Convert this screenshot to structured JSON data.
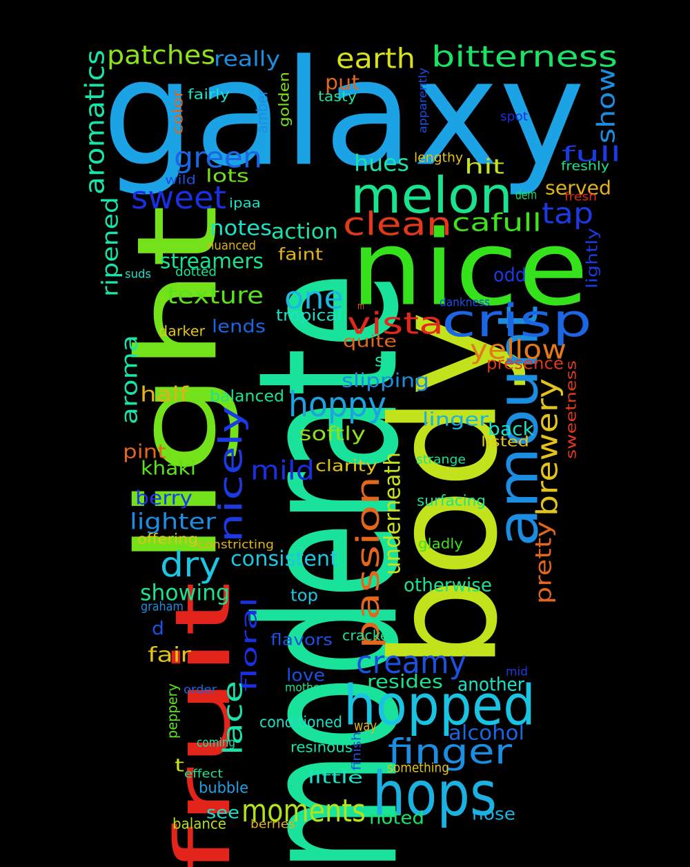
{
  "words": [
    {
      "text": "galaxy",
      "color": "#1ba3e5"
    },
    {
      "text": "moderate",
      "color": "#19e39a"
    },
    {
      "text": "body",
      "color": "#c2e21b"
    },
    {
      "text": "nice",
      "color": "#36e21b"
    },
    {
      "text": "light",
      "color": "#73e21b"
    },
    {
      "text": "fruit",
      "color": "#e2241b"
    },
    {
      "text": "amount",
      "color": "#1b8ee2"
    },
    {
      "text": "hops",
      "color": "#1bb2e2"
    },
    {
      "text": "hopped",
      "color": "#1bc3e2"
    },
    {
      "text": "melon",
      "color": "#19e38e"
    },
    {
      "text": "crisp",
      "color": "#1b66e2"
    },
    {
      "text": "bitterness",
      "color": "#1be264"
    },
    {
      "text": "earth",
      "color": "#d6e21b"
    },
    {
      "text": "patches",
      "color": "#8ee21b"
    },
    {
      "text": "aromatics",
      "color": "#19e3a8"
    },
    {
      "text": "really",
      "color": "#1b8ee2"
    },
    {
      "text": "green",
      "color": "#1b66e2"
    },
    {
      "text": "sweet",
      "color": "#1b2fe2"
    },
    {
      "text": "clean",
      "color": "#e2391b"
    },
    {
      "text": "cafull",
      "color": "#3fe21b"
    },
    {
      "text": "tap",
      "color": "#1b3ae2"
    },
    {
      "text": "hues",
      "color": "#1be2a8"
    },
    {
      "text": "hit",
      "color": "#c7e21b"
    },
    {
      "text": "lots",
      "color": "#73e21b"
    },
    {
      "text": "show",
      "color": "#1b8ee2"
    },
    {
      "text": "full",
      "color": "#1b3ae2"
    },
    {
      "text": "served",
      "color": "#e2b21b"
    },
    {
      "text": "one",
      "color": "#1bb8e2"
    },
    {
      "text": "vista",
      "color": "#e2271b"
    },
    {
      "text": "yellow",
      "color": "#e27a1b"
    },
    {
      "text": "texture",
      "color": "#5be21b"
    },
    {
      "text": "notes",
      "color": "#1be2c7"
    },
    {
      "text": "action",
      "color": "#1be2a8"
    },
    {
      "text": "streamers",
      "color": "#1be28e"
    },
    {
      "text": "ripened",
      "color": "#19e3a8"
    },
    {
      "text": "hoppy",
      "color": "#1ba3e2"
    },
    {
      "text": "aroma",
      "color": "#19e3a8"
    },
    {
      "text": "nicely",
      "color": "#1b3ae2"
    },
    {
      "text": "brewery",
      "color": "#e2c31b"
    },
    {
      "text": "passion",
      "color": "#e2661b"
    },
    {
      "text": "half",
      "color": "#e2b21b"
    },
    {
      "text": "balanced",
      "color": "#1be28e"
    },
    {
      "text": "slipping",
      "color": "#1b8ee2"
    },
    {
      "text": "mild",
      "color": "#1b2fe2"
    },
    {
      "text": "linger",
      "color": "#1bb2e2"
    },
    {
      "text": "back",
      "color": "#1be2c7"
    },
    {
      "text": "softly",
      "color": "#8ee21b"
    },
    {
      "text": "pretty",
      "color": "#e2661b"
    },
    {
      "text": "sweetness",
      "color": "#e2391b"
    },
    {
      "text": "underneath",
      "color": "#c7e21b"
    },
    {
      "text": "dry",
      "color": "#1bc7e2"
    },
    {
      "text": "lighter",
      "color": "#1b8ee2"
    },
    {
      "text": "berry",
      "color": "#1b3ae2"
    },
    {
      "text": "khaki",
      "color": "#5be21b"
    },
    {
      "text": "pint",
      "color": "#e2661b"
    },
    {
      "text": "creamy",
      "color": "#1b51e2"
    },
    {
      "text": "consistent",
      "color": "#1bc7e2"
    },
    {
      "text": "showing",
      "color": "#1be28e"
    },
    {
      "text": "floral",
      "color": "#1b2fe2"
    },
    {
      "text": "lace",
      "color": "#1be2a8"
    },
    {
      "text": "finger",
      "color": "#1b8ee2"
    },
    {
      "text": "moments",
      "color": "#b2e21b"
    },
    {
      "text": "resides",
      "color": "#1be28e"
    },
    {
      "text": "another",
      "color": "#1be2c7"
    },
    {
      "text": "alcohol",
      "color": "#1b66e2"
    },
    {
      "text": "otherwise",
      "color": "#1be28e"
    },
    {
      "text": "top",
      "color": "#1bc7e2"
    },
    {
      "text": "fair",
      "color": "#e2c31b"
    },
    {
      "text": "d",
      "color": "#1b51e2"
    },
    {
      "text": "t",
      "color": "#c7e21b"
    },
    {
      "text": "see",
      "color": "#1be2c7"
    },
    {
      "text": "noted",
      "color": "#1be264"
    },
    {
      "text": "nose",
      "color": "#1bb2e2"
    },
    {
      "text": "little",
      "color": "#1be2c7"
    },
    {
      "text": "bubble",
      "color": "#1ba3e2"
    },
    {
      "text": "balance",
      "color": "#b2e21b"
    },
    {
      "text": "put",
      "color": "#e2661b"
    },
    {
      "text": "tasty",
      "color": "#1be2a8"
    },
    {
      "text": "amber",
      "color": "#1b8ee2"
    },
    {
      "text": "golden",
      "color": "#7ae21b"
    },
    {
      "text": "color",
      "color": "#e2661b"
    },
    {
      "text": "fairly",
      "color": "#1be2c7"
    },
    {
      "text": "apparently",
      "color": "#1b51e2"
    },
    {
      "text": "spot",
      "color": "#1b2fe2"
    },
    {
      "text": "lengthy",
      "color": "#e2c31b"
    },
    {
      "text": "freshly",
      "color": "#1be28e"
    },
    {
      "text": "dem",
      "color": "#1be264"
    },
    {
      "text": "fresh",
      "color": "#e2271b"
    },
    {
      "text": "wild",
      "color": "#1b51e2"
    },
    {
      "text": "ipaa",
      "color": "#1be2c7"
    },
    {
      "text": "nuanced",
      "color": "#e2b21b"
    },
    {
      "text": "faint",
      "color": "#e2b21b"
    },
    {
      "text": "suds",
      "color": "#1be2c7"
    },
    {
      "text": "dotted",
      "color": "#1be28e"
    },
    {
      "text": "odd",
      "color": "#1b3ae2"
    },
    {
      "text": "lightly",
      "color": "#1b3ae2"
    },
    {
      "text": "dankness",
      "color": "#1b51e2"
    },
    {
      "text": "m",
      "color": "#e2661b"
    },
    {
      "text": "tropical",
      "color": "#1be2c7"
    },
    {
      "text": "lends",
      "color": "#1b66e2"
    },
    {
      "text": "darker",
      "color": "#e2c31b"
    },
    {
      "text": "quite",
      "color": "#e2661b"
    },
    {
      "text": "s",
      "color": "#1be2a8"
    },
    {
      "text": "presence",
      "color": "#e2391b"
    },
    {
      "text": "listed",
      "color": "#e2c31b"
    },
    {
      "text": "clarity",
      "color": "#e2c31b"
    },
    {
      "text": "strange",
      "color": "#1be28e"
    },
    {
      "text": "surfacing",
      "color": "#1be28e"
    },
    {
      "text": "offering",
      "color": "#e2c31b"
    },
    {
      "text": "constricting",
      "color": "#e2b21b"
    },
    {
      "text": "gladly",
      "color": "#3fe21b"
    },
    {
      "text": "graham",
      "color": "#1b8ee2"
    },
    {
      "text": "flavors",
      "color": "#1b51e2"
    },
    {
      "text": "cracker",
      "color": "#1be28e"
    },
    {
      "text": "love",
      "color": "#1b51e2"
    },
    {
      "text": "mother",
      "color": "#1be28e"
    },
    {
      "text": "mid",
      "color": "#1b3ae2"
    },
    {
      "text": "order",
      "color": "#1b66e2"
    },
    {
      "text": "peppery",
      "color": "#5be21b"
    },
    {
      "text": "conditioned",
      "color": "#1be2c7"
    },
    {
      "text": "way",
      "color": "#e2b21b"
    },
    {
      "text": "coming",
      "color": "#1be2a8"
    },
    {
      "text": "resinous",
      "color": "#1be2a8"
    },
    {
      "text": "finish",
      "color": "#1b51e2"
    },
    {
      "text": "effect",
      "color": "#1be28e"
    },
    {
      "text": "something",
      "color": "#e2c31b"
    },
    {
      "text": "berries",
      "color": "#e2b21b"
    }
  ]
}
